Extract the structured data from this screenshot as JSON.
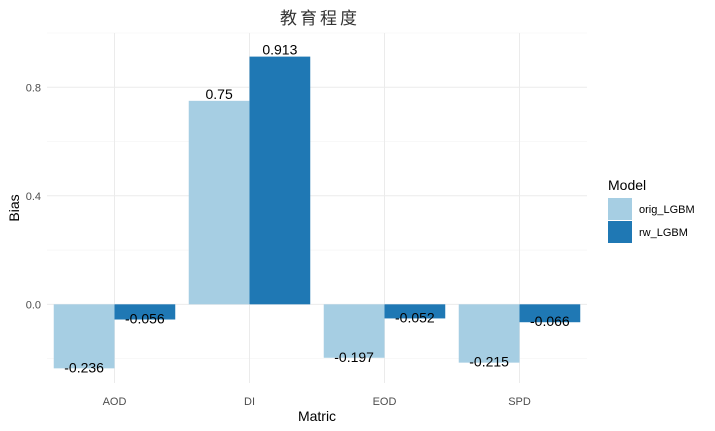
{
  "chart_data": {
    "type": "bar",
    "title": "教育程度",
    "xlabel": "Matric",
    "ylabel": "Bias",
    "categories": [
      "AOD",
      "DI",
      "EOD",
      "SPD"
    ],
    "series": [
      {
        "name": "orig_LGBM",
        "color": "#a6cee3",
        "values": [
          -0.236,
          0.75,
          -0.197,
          -0.215
        ]
      },
      {
        "name": "rw_LGBM",
        "color": "#1f78b4",
        "values": [
          -0.056,
          0.913,
          -0.052,
          -0.066
        ]
      }
    ],
    "data_labels": [
      [
        "-0.236",
        "0.75",
        "-0.197",
        "-0.215"
      ],
      [
        "-0.056",
        "0.913",
        "-0.052",
        "-0.066"
      ]
    ],
    "yticks": [
      0.0,
      0.4,
      0.8
    ],
    "ytick_labels": [
      "0.0",
      "0.4",
      "0.8"
    ],
    "ylim": [
      -0.29,
      1.0
    ],
    "legend": {
      "title": "Model",
      "position": "right"
    },
    "grid": true
  }
}
